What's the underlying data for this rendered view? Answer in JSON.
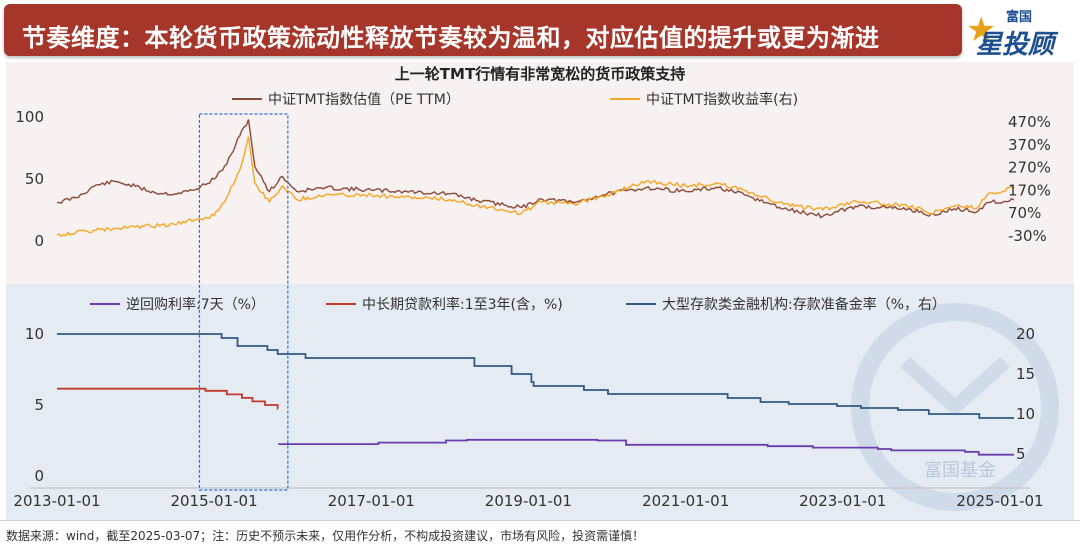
{
  "banner": {
    "title": "节奏维度：本轮货币政策流动性释放节奏较为温和，对应估值的提升或更为渐进",
    "logo_top": "富国",
    "logo_main": "星投顾"
  },
  "footer": {
    "source_note": "数据来源：wind，截至2025-03-07；注：历史不预示未来，仅用作分析，不构成投资建议，市场有风险，投资需谨慎！"
  },
  "watermark": "富国基金",
  "colors": {
    "banner_bg": "#a7362a",
    "pe": "#8a4a38",
    "ret": "#f5a623",
    "repo": "#6a3cae",
    "mlf": "#c0392b",
    "rrr": "#2f5b85",
    "top_panel_bg": "#f8f1f1",
    "bottom_panel_bg": "#e4ebf2",
    "highlight_box": "#2b6fd6"
  },
  "chart_data": [
    {
      "type": "line",
      "title": "上一轮TMT行情有非常宽松的货币政策支持",
      "x_range": [
        "2013-01-01",
        "2025-03-07"
      ],
      "y_left": {
        "ticks": [
          0,
          50,
          100
        ],
        "tick_labels": [
          "0",
          "50",
          "100"
        ],
        "ylim": [
          0,
          100
        ]
      },
      "y_right": {
        "ticks": [
          -30,
          70,
          170,
          270,
          370,
          470
        ],
        "tick_labels": [
          "-30%",
          "70%",
          "170%",
          "270%",
          "370%",
          "470%"
        ],
        "ylim": [
          -30,
          470
        ],
        "unit": "%"
      },
      "series": [
        {
          "name": "中证TMT指数估值（PE TTM）",
          "axis": "left",
          "points": [
            [
              "2013-01-01",
              31
            ],
            [
              "2013-04-01",
              35
            ],
            [
              "2013-07-01",
              45
            ],
            [
              "2013-10-01",
              48
            ],
            [
              "2014-01-01",
              44
            ],
            [
              "2014-04-01",
              39
            ],
            [
              "2014-07-01",
              38
            ],
            [
              "2014-10-01",
              41
            ],
            [
              "2015-01-01",
              50
            ],
            [
              "2015-03-01",
              62
            ],
            [
              "2015-05-01",
              85
            ],
            [
              "2015-06-10",
              98
            ],
            [
              "2015-07-10",
              60
            ],
            [
              "2015-09-15",
              40
            ],
            [
              "2015-11-15",
              52
            ],
            [
              "2016-01-20",
              40
            ],
            [
              "2016-06-01",
              43
            ],
            [
              "2017-01-01",
              41
            ],
            [
              "2017-06-01",
              40
            ],
            [
              "2018-01-01",
              38
            ],
            [
              "2018-06-01",
              32
            ],
            [
              "2018-12-01",
              27
            ],
            [
              "2019-03-01",
              34
            ],
            [
              "2019-08-01",
              31
            ],
            [
              "2020-01-01",
              38
            ],
            [
              "2020-07-01",
              43
            ],
            [
              "2021-01-01",
              40
            ],
            [
              "2021-06-01",
              43
            ],
            [
              "2021-10-01",
              37
            ],
            [
              "2022-04-01",
              26
            ],
            [
              "2022-10-01",
              20
            ],
            [
              "2023-03-01",
              28
            ],
            [
              "2023-08-01",
              27
            ],
            [
              "2024-01-01",
              24
            ],
            [
              "2024-02-05",
              20
            ],
            [
              "2024-06-01",
              26
            ],
            [
              "2024-09-20",
              24
            ],
            [
              "2024-11-01",
              31
            ],
            [
              "2025-03-07",
              33
            ]
          ]
        },
        {
          "name": "中证TMT指数收益率(右)",
          "axis": "right",
          "points": [
            [
              "2013-01-01",
              -25
            ],
            [
              "2013-07-01",
              -5
            ],
            [
              "2014-01-01",
              10
            ],
            [
              "2014-07-01",
              20
            ],
            [
              "2015-01-01",
              60
            ],
            [
              "2015-03-01",
              140
            ],
            [
              "2015-05-01",
              260
            ],
            [
              "2015-06-10",
              405
            ],
            [
              "2015-07-10",
              200
            ],
            [
              "2015-09-15",
              120
            ],
            [
              "2015-11-15",
              190
            ],
            [
              "2016-01-20",
              130
            ],
            [
              "2016-06-01",
              150
            ],
            [
              "2017-01-01",
              150
            ],
            [
              "2017-06-01",
              140
            ],
            [
              "2018-01-01",
              130
            ],
            [
              "2018-06-01",
              100
            ],
            [
              "2018-12-01",
              70
            ],
            [
              "2019-03-01",
              120
            ],
            [
              "2019-08-01",
              110
            ],
            [
              "2020-01-01",
              150
            ],
            [
              "2020-07-01",
              210
            ],
            [
              "2021-01-01",
              190
            ],
            [
              "2021-06-01",
              200
            ],
            [
              "2021-10-01",
              170
            ],
            [
              "2022-04-01",
              110
            ],
            [
              "2022-10-01",
              85
            ],
            [
              "2023-03-01",
              125
            ],
            [
              "2023-08-01",
              110
            ],
            [
              "2024-01-01",
              90
            ],
            [
              "2024-02-05",
              70
            ],
            [
              "2024-06-01",
              100
            ],
            [
              "2024-09-20",
              95
            ],
            [
              "2024-11-01",
              150
            ],
            [
              "2025-03-07",
              180
            ]
          ]
        }
      ]
    },
    {
      "type": "line",
      "x_range": [
        "2013-01-01",
        "2025-03-07"
      ],
      "x_ticks": [
        "2013-01-01",
        "2015-01-01",
        "2017-01-01",
        "2019-01-01",
        "2021-01-01",
        "2023-01-01",
        "2025-01-01"
      ],
      "y_left": {
        "ticks": [
          0,
          5,
          10
        ],
        "tick_labels": [
          "0",
          "5",
          "10"
        ],
        "ylim": [
          0,
          12
        ]
      },
      "y_right": {
        "ticks": [
          5,
          10,
          15,
          20
        ],
        "tick_labels": [
          "5",
          "10",
          "15",
          "20"
        ],
        "ylim": [
          4,
          22
        ]
      },
      "series": [
        {
          "name": "逆回购利率:7天（%）",
          "axis": "left",
          "points": [
            [
              "2015-10-26",
              2.25
            ],
            [
              "2017-02-03",
              2.35
            ],
            [
              "2017-12-14",
              2.5
            ],
            [
              "2018-03-22",
              2.55
            ],
            [
              "2019-11-18",
              2.5
            ],
            [
              "2020-03-30",
              2.2
            ],
            [
              "2022-01-17",
              2.1
            ],
            [
              "2022-08-15",
              2.0
            ],
            [
              "2023-06-13",
              1.9
            ],
            [
              "2023-08-15",
              1.8
            ],
            [
              "2024-07-22",
              1.7
            ],
            [
              "2024-09-24",
              1.5
            ],
            [
              "2025-03-07",
              1.5
            ]
          ]
        },
        {
          "name": "中长期贷款利率:1至3年(含，%)",
          "axis": "left",
          "points": [
            [
              "2013-01-01",
              6.15
            ],
            [
              "2014-11-22",
              6.0
            ],
            [
              "2015-03-01",
              5.75
            ],
            [
              "2015-05-11",
              5.5
            ],
            [
              "2015-06-28",
              5.25
            ],
            [
              "2015-08-26",
              5.0
            ],
            [
              "2015-10-24",
              4.75
            ],
            [
              "2015-10-25",
              4.75
            ]
          ]
        },
        {
          "name": "大型存款类金融机构:存款准备金率（%，右）",
          "axis": "right",
          "points": [
            [
              "2013-01-01",
              20.0
            ],
            [
              "2015-02-05",
              19.5
            ],
            [
              "2015-04-20",
              18.5
            ],
            [
              "2015-09-06",
              18.0
            ],
            [
              "2015-10-24",
              17.5
            ],
            [
              "2016-03-01",
              17.0
            ],
            [
              "2018-04-25",
              16.0
            ],
            [
              "2018-10-15",
              15.0
            ],
            [
              "2019-01-15",
              14.0
            ],
            [
              "2019-01-25",
              13.5
            ],
            [
              "2019-09-16",
              13.0
            ],
            [
              "2020-01-06",
              12.5
            ],
            [
              "2021-07-15",
              12.0
            ],
            [
              "2021-12-15",
              11.5
            ],
            [
              "2022-04-25",
              11.25
            ],
            [
              "2022-12-05",
              11.0
            ],
            [
              "2023-03-27",
              10.75
            ],
            [
              "2023-09-15",
              10.5
            ],
            [
              "2024-02-05",
              10.0
            ],
            [
              "2024-09-27",
              9.5
            ],
            [
              "2025-03-07",
              9.5
            ]
          ]
        }
      ]
    }
  ]
}
